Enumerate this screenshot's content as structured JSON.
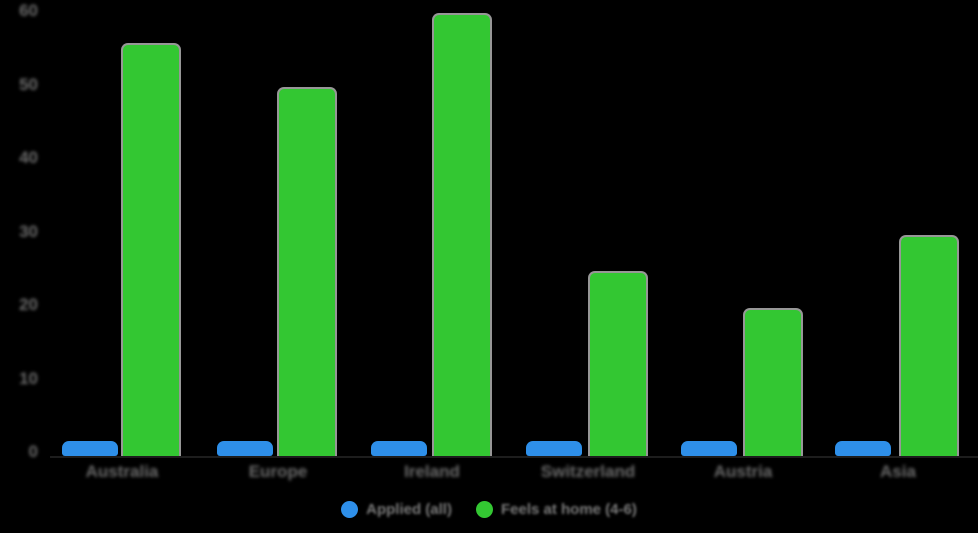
{
  "background_color": "#000000",
  "axis_text_color": "#6a6a6a",
  "legend_text_color": "#7c7c7c",
  "bar_outline_color": "#979797",
  "chart_data": {
    "type": "bar",
    "title": "",
    "xlabel": "",
    "ylabel": "",
    "categories": [
      "Australia",
      "Europe",
      "Ireland",
      "Switzerland",
      "Austria",
      "Asia"
    ],
    "series": [
      {
        "name": "Applied (all)",
        "color": "#2E8FE9",
        "values": [
          2,
          2,
          2,
          2,
          2,
          2
        ]
      },
      {
        "name": "Feels at home (4-6)",
        "color": "#33C732",
        "values": [
          56,
          50,
          60,
          25,
          20,
          30
        ]
      }
    ],
    "ylim": [
      0,
      60
    ],
    "yticks": [
      60,
      50,
      40,
      30,
      20,
      10,
      0
    ],
    "grid": false,
    "legend_position": "bottom"
  }
}
